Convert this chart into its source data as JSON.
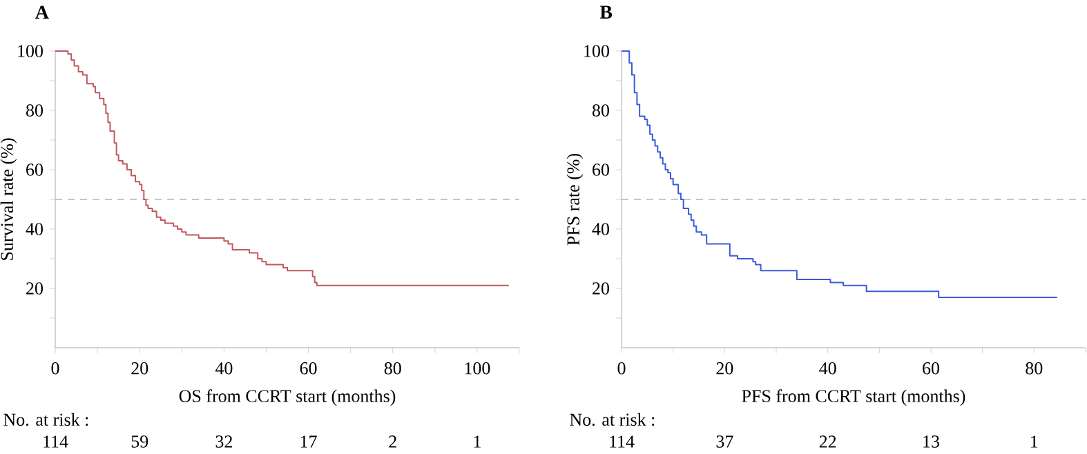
{
  "chart_data": [
    {
      "type": "step",
      "title": "A",
      "xlabel": "OS from CCRT start (months)",
      "ylabel": "Survival rate (%)",
      "xlim": [
        0,
        110
      ],
      "ylim": [
        0,
        100
      ],
      "xticks": [
        0,
        {
          "value": 10,
          "label": null
        },
        20,
        {
          "value": 30,
          "label": null
        },
        40,
        {
          "value": 50,
          "label": null
        },
        60,
        {
          "value": 70,
          "label": null
        },
        80,
        {
          "value": 90,
          "label": null
        },
        100,
        {
          "value": 110,
          "label": null
        }
      ],
      "yticks": [
        {
          "value": 10,
          "label": null
        },
        20,
        {
          "value": 30,
          "label": null
        },
        40,
        {
          "value": 50,
          "label": null
        },
        60,
        {
          "value": 70,
          "label": null
        },
        80,
        {
          "value": 90,
          "label": null
        },
        100
      ],
      "series": [
        {
          "color": "#c0585f",
          "x": [
            0,
            3,
            3.8,
            4.5,
            5.5,
            6.5,
            7.5,
            9,
            9.5,
            10.5,
            11.5,
            12,
            12.5,
            13,
            14,
            14.5,
            15,
            16,
            17,
            18,
            19,
            20,
            20.5,
            21,
            21.5,
            22,
            23,
            24,
            25,
            26,
            28,
            29,
            30,
            31,
            34,
            40,
            41,
            42,
            46,
            48,
            49,
            50,
            54,
            55,
            61,
            61.5,
            62,
            107.5
          ],
          "values": [
            100,
            99,
            97,
            95,
            93,
            92,
            89,
            88,
            86,
            84,
            82,
            79,
            76,
            73,
            69,
            65,
            63,
            62,
            60,
            58,
            56,
            55,
            53,
            50,
            48,
            47,
            46,
            44,
            43,
            42,
            41,
            40,
            39,
            38,
            37,
            36,
            35,
            33,
            32,
            30,
            29,
            28,
            27,
            26,
            24,
            22,
            21,
            21
          ]
        }
      ],
      "ref_lines": [
        {
          "axis": "y",
          "value": 50,
          "color": "#b4b4b4",
          "line_style": "dashed"
        }
      ],
      "annotations": [
        "No. at risk :",
        "114",
        "59",
        "32",
        "17",
        "2",
        "1"
      ]
    },
    {
      "type": "step",
      "title": "B",
      "xlabel": "PFS from CCRT start (months)",
      "ylabel": "PFS rate (%)",
      "xlim": [
        0,
        90
      ],
      "ylim": [
        0,
        100
      ],
      "xticks": [
        0,
        {
          "value": 10,
          "label": null
        },
        20,
        {
          "value": 30,
          "label": null
        },
        40,
        {
          "value": 50,
          "label": null
        },
        60,
        {
          "value": 70,
          "label": null
        },
        80,
        {
          "value": 90,
          "label": null
        }
      ],
      "yticks": [
        {
          "value": 10,
          "label": null
        },
        20,
        {
          "value": 30,
          "label": null
        },
        40,
        {
          "value": 50,
          "label": null
        },
        60,
        {
          "value": 70,
          "label": null
        },
        80,
        {
          "value": 90,
          "label": null
        },
        100
      ],
      "series": [
        {
          "color": "#3b5bdb",
          "x": [
            0,
            1.5,
            2,
            2.5,
            3,
            3.5,
            4.5,
            5,
            5.5,
            6,
            6.5,
            7,
            7.5,
            8,
            8.5,
            9,
            9.5,
            10,
            11,
            11.5,
            12,
            13,
            13.5,
            14,
            14.5,
            15.5,
            16.5,
            21,
            22.5,
            25.5,
            26,
            27,
            34,
            40.5,
            43,
            47.5,
            61.5,
            84.5
          ],
          "values": [
            100,
            96,
            92,
            86,
            82,
            78,
            77,
            75,
            72,
            70,
            68,
            66,
            64,
            62,
            60,
            59,
            57,
            55,
            52,
            50,
            47,
            45,
            43,
            41,
            39,
            38,
            35,
            31,
            30,
            29,
            28,
            26,
            23,
            22,
            21,
            19,
            17,
            17
          ]
        }
      ],
      "ref_lines": [
        {
          "axis": "y",
          "value": 50,
          "color": "#b4b4b4",
          "line_style": "dashed"
        }
      ],
      "annotations": [
        "No. at risk :",
        "114",
        "37",
        "22",
        "13",
        "1"
      ]
    }
  ]
}
